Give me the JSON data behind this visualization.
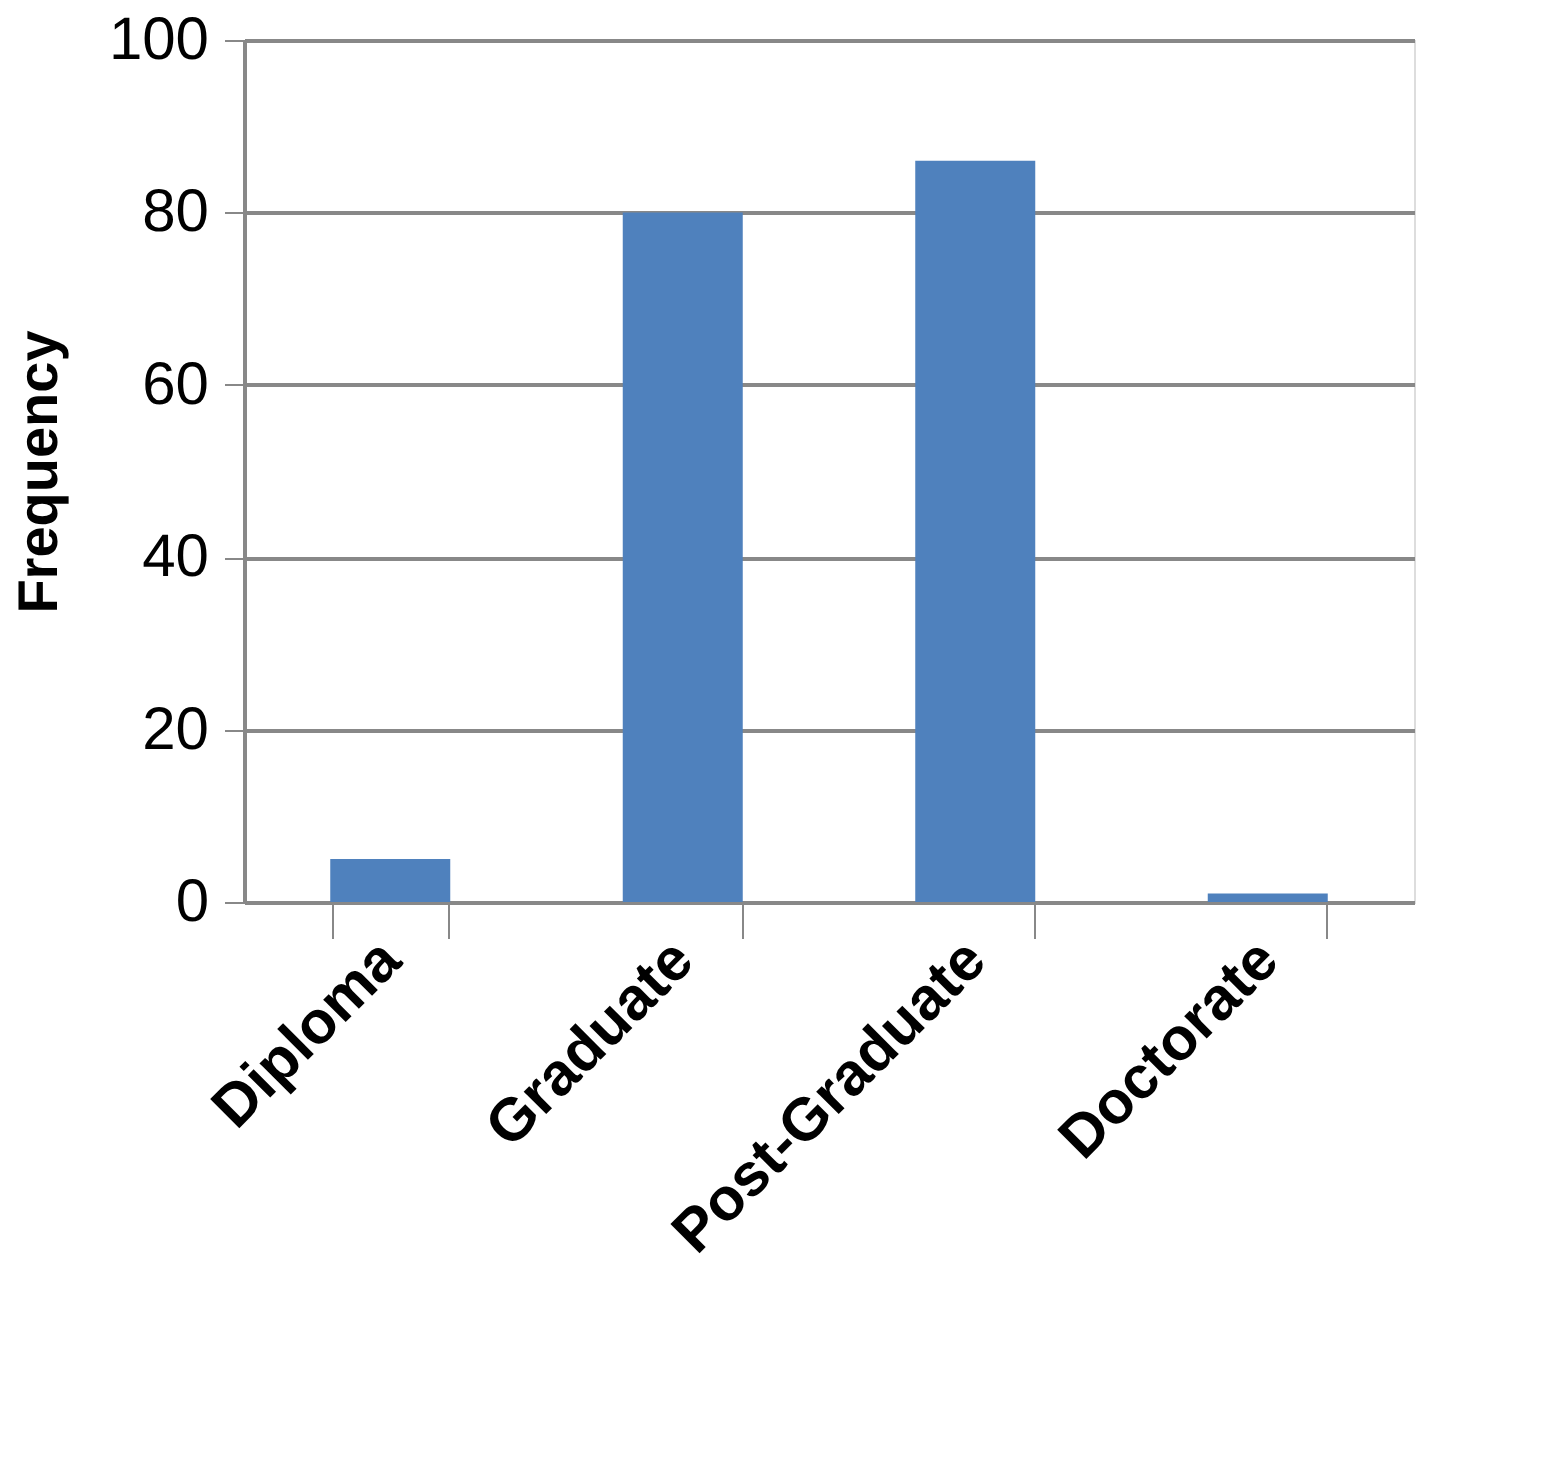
{
  "chart_data": {
    "type": "bar",
    "ylabel": "Frequency",
    "categories": [
      "Diploma",
      "Graduate",
      "Post-Graduate",
      "Doctorate"
    ],
    "values": [
      5,
      80,
      86,
      1
    ],
    "color": "#4f81bd",
    "ylim": [
      0,
      100
    ],
    "yticks": [
      0,
      20,
      40,
      60,
      80,
      100
    ],
    "grid": "y"
  }
}
